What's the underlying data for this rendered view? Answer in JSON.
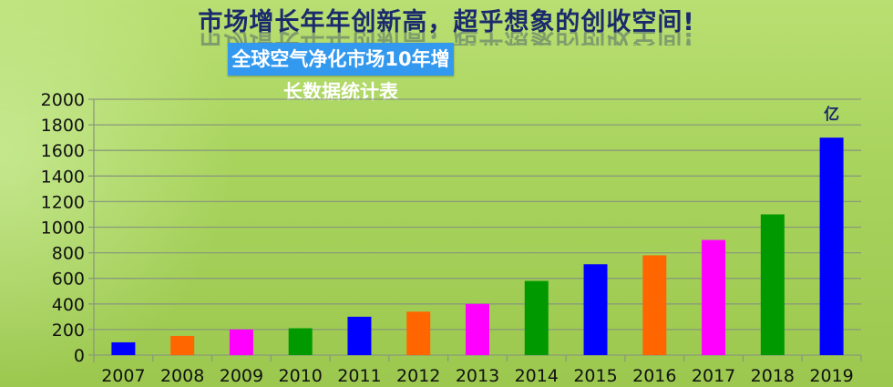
{
  "headline": "市场增长年年创新高，超乎想象的创收空间!",
  "chart_data": {
    "type": "bar",
    "title": "全球空气净化市场10年增长数据统计表",
    "unit_label": "亿",
    "categories": [
      "2007",
      "2008",
      "2009",
      "2010",
      "2011",
      "2012",
      "2013",
      "2014",
      "2015",
      "2016",
      "2017",
      "2018",
      "2019"
    ],
    "values": [
      100,
      150,
      200,
      210,
      300,
      340,
      400,
      580,
      710,
      780,
      900,
      1100,
      1700
    ],
    "bar_colors": [
      "#0000ff",
      "#ff6600",
      "#ff00ff",
      "#009900",
      "#0000ff",
      "#ff6600",
      "#ff00ff",
      "#009900",
      "#0000ff",
      "#ff6600",
      "#ff00ff",
      "#009900",
      "#0000ff"
    ],
    "ylim": [
      0,
      2000
    ],
    "yticks": [
      0,
      200,
      400,
      600,
      800,
      1000,
      1200,
      1400,
      1600,
      1800,
      2000
    ],
    "grid": true,
    "xlabel": "",
    "ylabel": ""
  },
  "colors": {
    "banner": "#3399ee",
    "headline": "#1a2a6c"
  }
}
